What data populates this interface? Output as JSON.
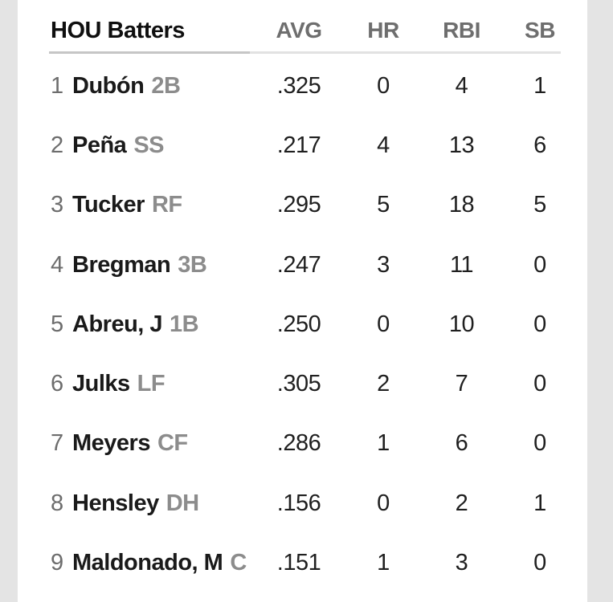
{
  "colors": {
    "page_background": "#e4e4e4",
    "card_background": "#ffffff",
    "team_header_text": "#0f0f0f",
    "column_header_text": "#6e6e6e",
    "player_name_text": "#1a1a1a",
    "order_number_text": "#6d6d6d",
    "position_text": "#8c8c8c",
    "stat_text": "#1f1f1f",
    "divider_left": "#c6c6c6",
    "divider_right": "#e2e2e2"
  },
  "table": {
    "header": {
      "team_label": "HOU Batters",
      "columns": {
        "avg": "AVG",
        "hr": "HR",
        "rbi": "RBI",
        "sb": "SB"
      }
    },
    "rows": [
      {
        "order": "1",
        "name": "Dubón",
        "position": "2B",
        "avg": ".325",
        "hr": "0",
        "rbi": "4",
        "sb": "1"
      },
      {
        "order": "2",
        "name": "Peña",
        "position": "SS",
        "avg": ".217",
        "hr": "4",
        "rbi": "13",
        "sb": "6"
      },
      {
        "order": "3",
        "name": "Tucker",
        "position": "RF",
        "avg": ".295",
        "hr": "5",
        "rbi": "18",
        "sb": "5"
      },
      {
        "order": "4",
        "name": "Bregman",
        "position": "3B",
        "avg": ".247",
        "hr": "3",
        "rbi": "11",
        "sb": "0"
      },
      {
        "order": "5",
        "name": "Abreu, J",
        "position": "1B",
        "avg": ".250",
        "hr": "0",
        "rbi": "10",
        "sb": "0"
      },
      {
        "order": "6",
        "name": "Julks",
        "position": "LF",
        "avg": ".305",
        "hr": "2",
        "rbi": "7",
        "sb": "0"
      },
      {
        "order": "7",
        "name": "Meyers",
        "position": "CF",
        "avg": ".286",
        "hr": "1",
        "rbi": "6",
        "sb": "0"
      },
      {
        "order": "8",
        "name": "Hensley",
        "position": "DH",
        "avg": ".156",
        "hr": "0",
        "rbi": "2",
        "sb": "1"
      },
      {
        "order": "9",
        "name": "Maldonado, M",
        "position": "C",
        "avg": ".151",
        "hr": "1",
        "rbi": "3",
        "sb": "0"
      }
    ]
  }
}
